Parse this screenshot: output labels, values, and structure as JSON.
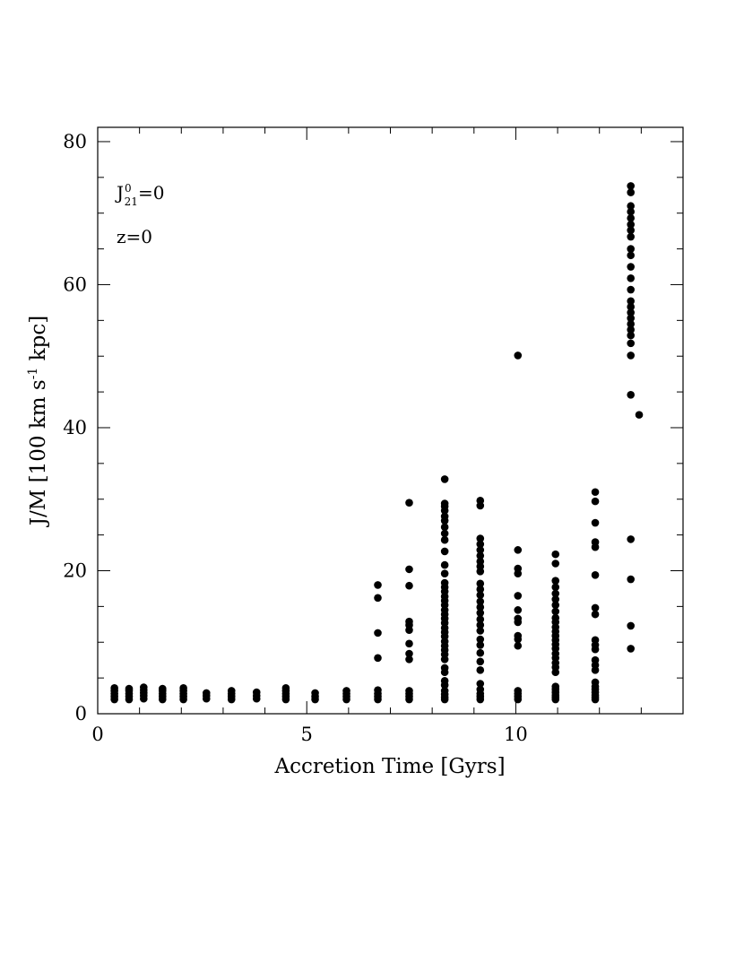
{
  "chart_data": {
    "type": "scatter",
    "xlabel": "Accretion Time [Gyrs]",
    "ylabel_main": "J/M [100 km s",
    "ylabel_sup": "-1",
    "ylabel_end": " kpc]",
    "xlim": [
      0,
      14
    ],
    "ylim": [
      0,
      82
    ],
    "xticks": [
      0,
      5,
      10
    ],
    "yticks": [
      0,
      20,
      40,
      60,
      80
    ],
    "annotations": {
      "j_base": "J",
      "j_sup": "0",
      "j_sub": "21",
      "j_rest": "=0",
      "redshift": "z=0"
    },
    "marker_color": "#000000",
    "series": [
      {
        "columns": [
          {
            "x": 0.4,
            "y": [
              2.0,
              2.4,
              2.8,
              3.2,
              3.6
            ]
          },
          {
            "x": 0.75,
            "y": [
              2.0,
              2.4,
              2.8,
              3.2,
              3.5
            ]
          },
          {
            "x": 1.1,
            "y": [
              2.1,
              2.5,
              2.9,
              3.3,
              3.7
            ]
          },
          {
            "x": 1.55,
            "y": [
              2.0,
              2.4,
              2.8,
              3.2,
              3.5
            ]
          },
          {
            "x": 2.05,
            "y": [
              2.0,
              2.4,
              2.8,
              3.2,
              3.6
            ]
          },
          {
            "x": 2.6,
            "y": [
              2.1,
              2.5,
              2.9
            ]
          },
          {
            "x": 3.2,
            "y": [
              2.0,
              2.4,
              2.8,
              3.2
            ]
          },
          {
            "x": 3.8,
            "y": [
              2.1,
              2.5,
              3.0
            ]
          },
          {
            "x": 4.5,
            "y": [
              2.0,
              2.4,
              2.8,
              3.2,
              3.6
            ]
          },
          {
            "x": 5.2,
            "y": [
              2.0,
              2.4,
              2.9
            ]
          },
          {
            "x": 5.95,
            "y": [
              2.0,
              2.4,
              2.8,
              3.2
            ]
          },
          {
            "x": 6.7,
            "y": [
              2.0,
              2.4,
              2.8,
              3.3,
              7.8,
              11.3,
              16.2,
              18.0
            ]
          },
          {
            "x": 7.45,
            "y": [
              2.0,
              2.4,
              2.8,
              3.2,
              7.6,
              8.4,
              9.8,
              11.7,
              12.4,
              12.9,
              17.9,
              20.2,
              29.5
            ]
          },
          {
            "x": 8.3,
            "y": [
              2.0,
              2.3,
              2.7,
              3.2,
              4.0,
              4.6,
              5.8,
              6.4,
              7.6,
              8.3,
              8.9,
              9.5,
              10.1,
              10.8,
              11.4,
              12.0,
              12.7,
              13.3,
              13.9,
              14.5,
              15.2,
              15.8,
              16.4,
              17.1,
              17.7,
              18.3,
              19.6,
              20.8,
              22.7,
              24.3,
              25.2,
              26.1,
              27.0,
              27.6,
              28.4,
              29.0,
              29.4,
              32.8
            ]
          },
          {
            "x": 9.15,
            "y": [
              2.0,
              2.4,
              2.8,
              3.4,
              4.2,
              6.1,
              7.3,
              8.5,
              9.6,
              10.4,
              11.6,
              12.4,
              13.2,
              14.1,
              14.9,
              15.7,
              16.6,
              17.4,
              18.2,
              19.9,
              20.6,
              21.3,
              22.1,
              22.9,
              23.7,
              24.5,
              29.1,
              29.8
            ]
          },
          {
            "x": 10.05,
            "y": [
              2.0,
              2.4,
              2.8,
              3.2,
              9.5,
              10.4,
              10.9,
              12.8,
              13.3,
              14.5,
              16.5,
              19.6,
              20.3,
              22.9,
              50.1
            ]
          },
          {
            "x": 10.95,
            "y": [
              2.0,
              2.3,
              2.6,
              3.0,
              3.4,
              3.8,
              5.8,
              6.5,
              7.1,
              7.8,
              8.4,
              9.1,
              9.7,
              10.3,
              10.9,
              11.5,
              12.1,
              12.8,
              13.4,
              14.3,
              15.2,
              16.0,
              16.8,
              17.7,
              18.6,
              21.0,
              22.3
            ]
          },
          {
            "x": 11.9,
            "y": [
              2.0,
              2.3,
              2.6,
              3.0,
              3.4,
              3.8,
              4.4,
              6.1,
              6.8,
              7.5,
              9.0,
              9.6,
              10.3,
              13.9,
              14.8,
              19.4,
              23.3,
              24.0,
              26.7,
              29.7,
              31.0
            ]
          },
          {
            "x": 12.75,
            "y": [
              9.1,
              12.3,
              18.8,
              24.4,
              44.6,
              50.1,
              51.8,
              52.9,
              53.7,
              54.5,
              55.3,
              56.1,
              56.9,
              57.7,
              59.3,
              60.9,
              62.5,
              64.1,
              65.0,
              66.7,
              67.6,
              68.4,
              69.3,
              70.2,
              71.0,
              72.9,
              73.8
            ]
          },
          {
            "x": 12.95,
            "y": [
              41.8
            ]
          }
        ]
      }
    ]
  }
}
